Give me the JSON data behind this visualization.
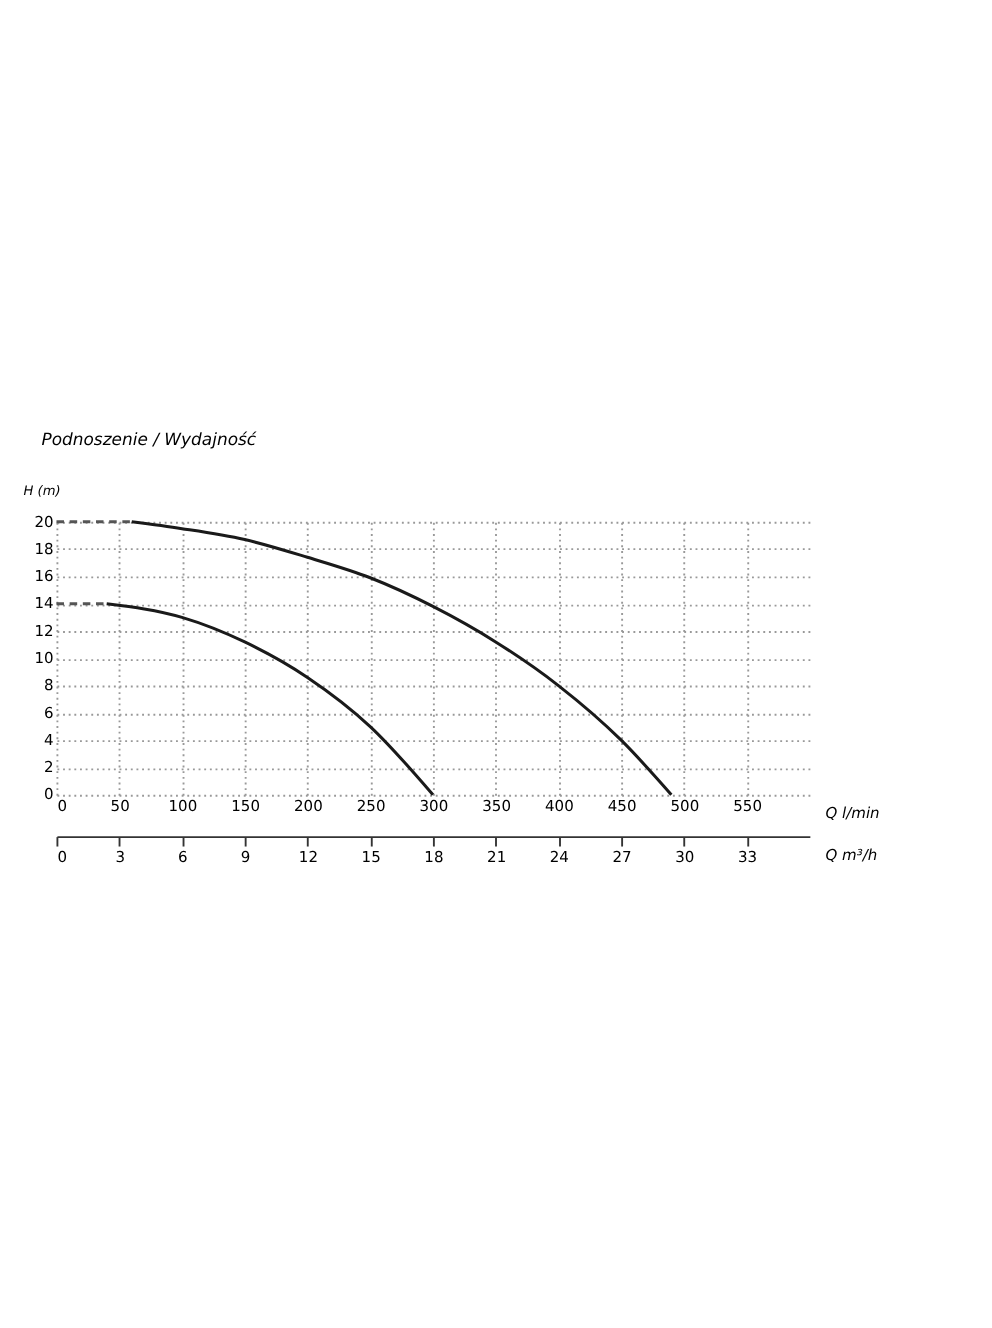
{
  "chart_data": {
    "type": "line",
    "title": "Podnoszenie / Wydajność",
    "xlabel": "Q l/min",
    "x2label": "Q m³/h",
    "ylabel": "H (m)",
    "xlim": [
      0,
      600
    ],
    "xticks": [
      0,
      50,
      100,
      150,
      200,
      250,
      300,
      350,
      400,
      450,
      500,
      550
    ],
    "x2lim": [
      0,
      36
    ],
    "x2ticks": [
      0,
      3,
      6,
      9,
      12,
      15,
      18,
      21,
      24,
      27,
      30,
      33
    ],
    "ylim": [
      0,
      20
    ],
    "yticks": [
      0,
      2,
      4,
      6,
      8,
      10,
      12,
      14,
      16,
      18,
      20
    ],
    "grid": true,
    "marker": "none",
    "series": [
      {
        "color": "#1a1a1a",
        "line_style": "solid",
        "x": [
          60,
          100,
          150,
          200,
          250,
          300,
          350,
          400,
          450,
          490
        ],
        "values": [
          20,
          19.5,
          18.7,
          17.4,
          15.9,
          13.8,
          11.2,
          8,
          4,
          0
        ]
      },
      {
        "color": "#1a1a1a",
        "line_style": "solid",
        "x": [
          40,
          100,
          150,
          200,
          250,
          300
        ],
        "values": [
          14,
          13,
          11.2,
          8.6,
          5,
          0
        ]
      },
      {
        "color": "#555555",
        "line_style": "dashed",
        "x": [
          0,
          60
        ],
        "values": [
          20,
          20
        ]
      },
      {
        "color": "#555555",
        "line_style": "dashed",
        "x": [
          0,
          40
        ],
        "values": [
          14,
          14
        ]
      }
    ]
  }
}
